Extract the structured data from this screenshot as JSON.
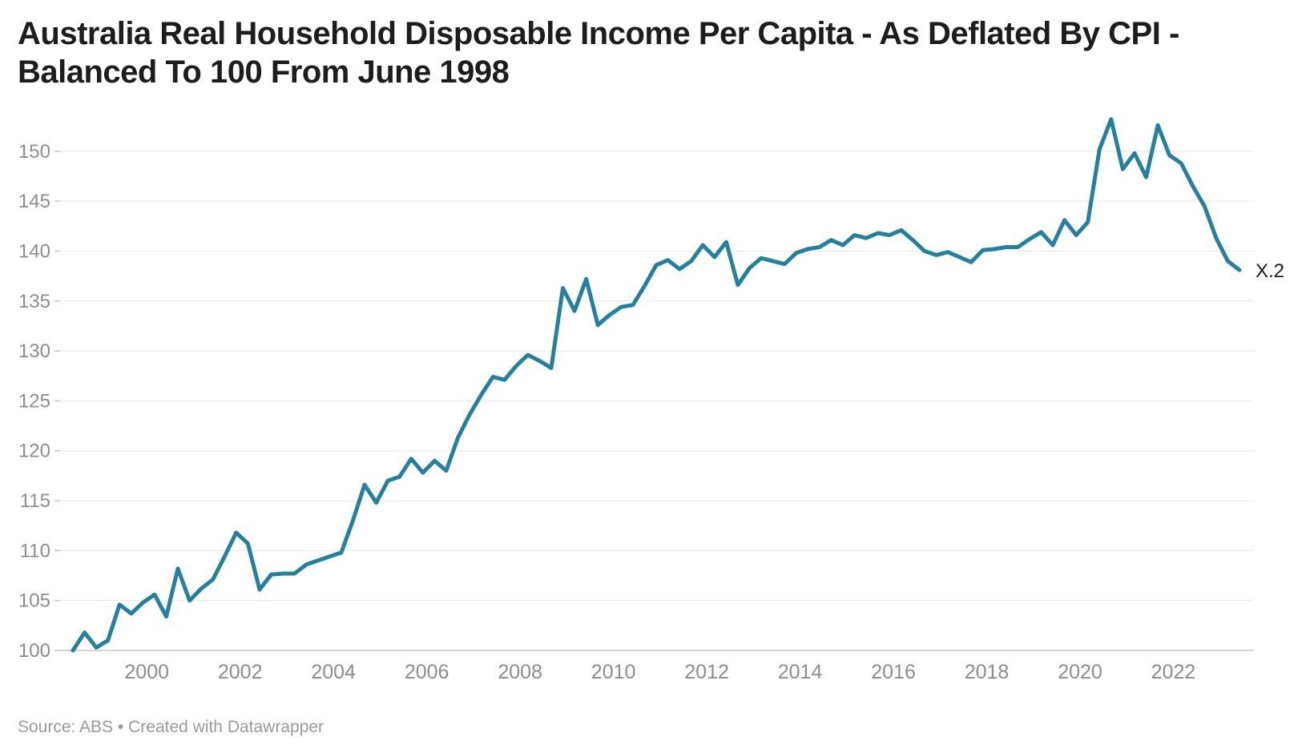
{
  "title_lines": [
    "Australia Real Household Disposable Income Per Capita - As Deflated By CPI -",
    "Balanced To 100 From June 1998"
  ],
  "source_note": "Source: ABS • Created with Datawrapper",
  "end_label": "X.2",
  "colors": {
    "line": "#2380a0",
    "grid": "#e8e8e8",
    "baseline": "#c6c6c6",
    "tick_stub": "#c6c6c6",
    "axis_text": "#8d8d8d",
    "title_text": "#1d1d1d",
    "end_label_text": "#1c1c1c",
    "source_text": "#9a9a9a",
    "background": "#ffffff"
  },
  "chart_data": {
    "type": "line",
    "title": "Australia Real Household Disposable Income Per Capita - As Deflated By CPI - Balanced To 100 From June 1998",
    "xlabel": "",
    "ylabel": "",
    "x_unit": "quarter",
    "x_start": "1998-Q2",
    "x_end": "2023-Q2",
    "grid": "horizontal",
    "legend": "none",
    "ylim": [
      100,
      153.2
    ],
    "y_ticks": [
      100,
      105,
      110,
      115,
      120,
      125,
      130,
      135,
      140,
      145,
      150
    ],
    "x_tick_labels": [
      "2000",
      "2002",
      "2004",
      "2006",
      "2008",
      "2010",
      "2012",
      "2014",
      "2016",
      "2018",
      "2020",
      "2022"
    ],
    "categories": [
      "1998-Q2",
      "1998-Q3",
      "1998-Q4",
      "1999-Q1",
      "1999-Q2",
      "1999-Q3",
      "1999-Q4",
      "2000-Q1",
      "2000-Q2",
      "2000-Q3",
      "2000-Q4",
      "2001-Q1",
      "2001-Q2",
      "2001-Q3",
      "2001-Q4",
      "2002-Q1",
      "2002-Q2",
      "2002-Q3",
      "2002-Q4",
      "2003-Q1",
      "2003-Q2",
      "2003-Q3",
      "2003-Q4",
      "2004-Q1",
      "2004-Q2",
      "2004-Q3",
      "2004-Q4",
      "2005-Q1",
      "2005-Q2",
      "2005-Q3",
      "2005-Q4",
      "2006-Q1",
      "2006-Q2",
      "2006-Q3",
      "2006-Q4",
      "2007-Q1",
      "2007-Q2",
      "2007-Q3",
      "2007-Q4",
      "2008-Q1",
      "2008-Q2",
      "2008-Q3",
      "2008-Q4",
      "2009-Q1",
      "2009-Q2",
      "2009-Q3",
      "2009-Q4",
      "2010-Q1",
      "2010-Q2",
      "2010-Q3",
      "2010-Q4",
      "2011-Q1",
      "2011-Q2",
      "2011-Q3",
      "2011-Q4",
      "2012-Q1",
      "2012-Q2",
      "2012-Q3",
      "2012-Q4",
      "2013-Q1",
      "2013-Q2",
      "2013-Q3",
      "2013-Q4",
      "2014-Q1",
      "2014-Q2",
      "2014-Q3",
      "2014-Q4",
      "2015-Q1",
      "2015-Q2",
      "2015-Q3",
      "2015-Q4",
      "2016-Q1",
      "2016-Q2",
      "2016-Q3",
      "2016-Q4",
      "2017-Q1",
      "2017-Q2",
      "2017-Q3",
      "2017-Q4",
      "2018-Q1",
      "2018-Q2",
      "2018-Q3",
      "2018-Q4",
      "2019-Q1",
      "2019-Q2",
      "2019-Q3",
      "2019-Q4",
      "2020-Q1",
      "2020-Q2",
      "2020-Q3",
      "2020-Q4",
      "2021-Q1",
      "2021-Q2",
      "2021-Q3",
      "2021-Q4",
      "2022-Q1",
      "2022-Q2",
      "2022-Q3",
      "2022-Q4",
      "2023-Q1",
      "2023-Q2"
    ],
    "series": [
      {
        "name": "X.2",
        "values": [
          100.0,
          101.8,
          100.3,
          101.0,
          104.6,
          103.7,
          104.8,
          105.6,
          103.4,
          108.2,
          105.0,
          106.2,
          107.1,
          109.4,
          111.8,
          110.7,
          106.1,
          107.6,
          107.7,
          107.7,
          108.6,
          109.0,
          109.4,
          109.8,
          113.0,
          116.6,
          114.8,
          117.0,
          117.4,
          119.2,
          117.8,
          119.0,
          118.0,
          121.3,
          123.6,
          125.6,
          127.4,
          127.1,
          128.5,
          129.6,
          129.0,
          128.3,
          136.3,
          134.0,
          137.2,
          132.6,
          133.6,
          134.4,
          134.6,
          136.5,
          138.6,
          139.1,
          138.2,
          139.0,
          140.6,
          139.4,
          140.9,
          136.6,
          138.3,
          139.3,
          139.0,
          138.7,
          139.8,
          140.2,
          140.4,
          141.1,
          140.6,
          141.6,
          141.3,
          141.8,
          141.6,
          142.1,
          141.1,
          140.0,
          139.6,
          139.9,
          139.4,
          138.9,
          140.1,
          140.2,
          140.4,
          140.4,
          141.2,
          141.9,
          140.6,
          143.1,
          141.6,
          142.9,
          150.2,
          153.2,
          148.2,
          149.8,
          147.4,
          152.6,
          149.6,
          148.8,
          146.5,
          144.5,
          141.3,
          139.0,
          138.1
        ]
      }
    ]
  }
}
